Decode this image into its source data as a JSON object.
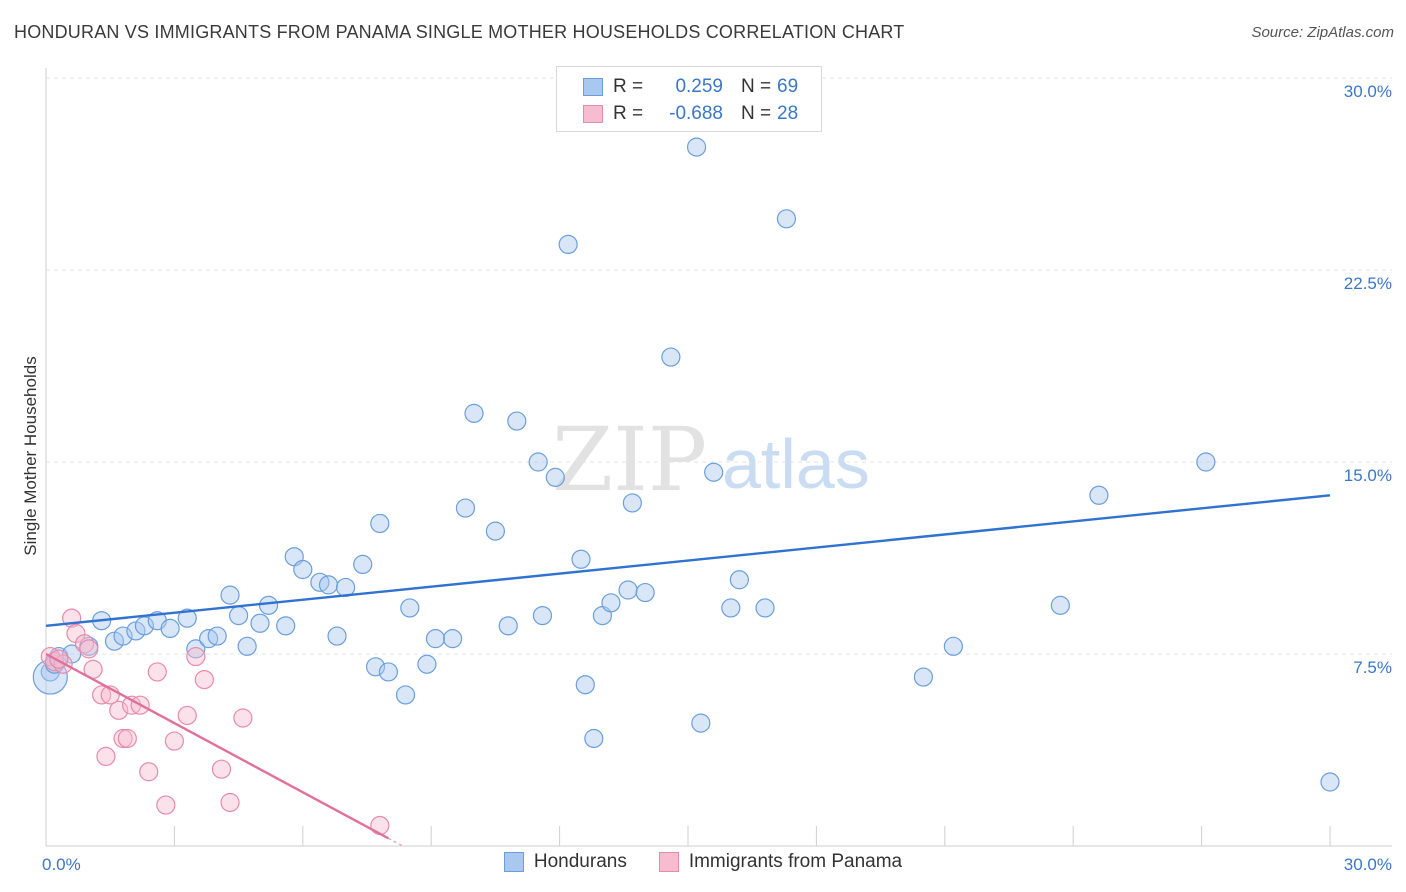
{
  "header": {
    "title": "HONDURAN VS IMMIGRANTS FROM PANAMA SINGLE MOTHER HOUSEHOLDS CORRELATION CHART",
    "source": "Source: ZipAtlas.com"
  },
  "watermark": {
    "zip": "ZIP",
    "atlas": "atlas"
  },
  "legend": {
    "rows": [
      {
        "r_label": "R =",
        "r_value": "0.259",
        "n_label": "N =",
        "n_value": "69",
        "color": "#a9c8ef",
        "border": "#6a9fdc"
      },
      {
        "r_label": "R =",
        "r_value": "-0.688",
        "n_label": "N =",
        "n_value": "28",
        "color": "#f6bcd0",
        "border": "#e88aab"
      }
    ]
  },
  "bottom_legend": {
    "items": [
      {
        "label": "Hondurans",
        "color": "#a9c8ef",
        "border": "#6a9fdc"
      },
      {
        "label": "Immigrants from Panama",
        "color": "#f6bcd0",
        "border": "#e88aab"
      }
    ]
  },
  "chart_data": {
    "type": "scatter",
    "title": "HONDURAN VS IMMIGRANTS FROM PANAMA SINGLE MOTHER HOUSEHOLDS CORRELATION CHART",
    "xlabel": "",
    "ylabel": "Single Mother Households",
    "xlim": [
      0,
      30
    ],
    "ylim": [
      0,
      30
    ],
    "x_tick_labels": [
      "0.0%",
      "30.0%"
    ],
    "y_tick_labels": [
      "7.5%",
      "15.0%",
      "22.5%",
      "30.0%"
    ],
    "y_ticks": [
      7.5,
      15.0,
      22.5,
      30.0
    ],
    "grid": true,
    "series": [
      {
        "name": "Hondurans",
        "color": "#6a9fdc",
        "fill": "#a9c8ef",
        "trend": {
          "x": [
            0,
            30
          ],
          "y": [
            8.6,
            13.7
          ]
        },
        "points": [
          [
            0.1,
            6.8
          ],
          [
            0.3,
            7.4
          ],
          [
            0.6,
            7.5
          ],
          [
            1.0,
            7.8
          ],
          [
            1.3,
            8.8
          ],
          [
            1.6,
            8.0
          ],
          [
            1.8,
            8.2
          ],
          [
            2.1,
            8.4
          ],
          [
            2.3,
            8.6
          ],
          [
            2.6,
            8.8
          ],
          [
            2.9,
            8.5
          ],
          [
            3.3,
            8.9
          ],
          [
            3.5,
            7.7
          ],
          [
            3.8,
            8.1
          ],
          [
            4.0,
            8.2
          ],
          [
            4.3,
            9.8
          ],
          [
            4.5,
            9.0
          ],
          [
            4.7,
            7.8
          ],
          [
            5.0,
            8.7
          ],
          [
            5.2,
            9.4
          ],
          [
            5.6,
            8.6
          ],
          [
            5.8,
            11.3
          ],
          [
            6.0,
            10.8
          ],
          [
            6.4,
            10.3
          ],
          [
            6.6,
            10.2
          ],
          [
            6.8,
            8.2
          ],
          [
            7.0,
            10.1
          ],
          [
            7.4,
            11.0
          ],
          [
            7.7,
            7.0
          ],
          [
            7.8,
            12.6
          ],
          [
            8.0,
            6.8
          ],
          [
            8.4,
            5.9
          ],
          [
            8.5,
            9.3
          ],
          [
            8.9,
            7.1
          ],
          [
            9.1,
            8.1
          ],
          [
            9.5,
            8.1
          ],
          [
            9.8,
            13.2
          ],
          [
            10.0,
            16.9
          ],
          [
            10.5,
            12.3
          ],
          [
            10.8,
            8.6
          ],
          [
            11.0,
            16.6
          ],
          [
            11.5,
            15.0
          ],
          [
            11.6,
            9.0
          ],
          [
            11.9,
            14.4
          ],
          [
            12.2,
            23.5
          ],
          [
            12.5,
            11.2
          ],
          [
            12.6,
            6.3
          ],
          [
            12.8,
            4.2
          ],
          [
            13.0,
            9.0
          ],
          [
            13.2,
            9.5
          ],
          [
            13.6,
            10.0
          ],
          [
            13.7,
            13.4
          ],
          [
            14.0,
            9.9
          ],
          [
            14.6,
            19.1
          ],
          [
            15.2,
            27.3
          ],
          [
            15.3,
            4.8
          ],
          [
            15.6,
            14.6
          ],
          [
            16.0,
            9.3
          ],
          [
            16.2,
            10.4
          ],
          [
            16.8,
            9.3
          ],
          [
            17.3,
            24.5
          ],
          [
            20.5,
            6.6
          ],
          [
            21.2,
            7.8
          ],
          [
            23.7,
            9.4
          ],
          [
            24.6,
            13.7
          ],
          [
            27.1,
            15.0
          ],
          [
            30.0,
            2.5
          ],
          [
            0.1,
            6.6
          ],
          [
            0.2,
            7.1
          ]
        ]
      },
      {
        "name": "Immigrants from Panama",
        "color": "#e88aab",
        "fill": "#f6bcd0",
        "trend": {
          "x": [
            0,
            8.0
          ],
          "y": [
            7.5,
            0.3
          ]
        },
        "points": [
          [
            0.1,
            7.4
          ],
          [
            0.2,
            7.2
          ],
          [
            0.4,
            7.1
          ],
          [
            0.6,
            8.9
          ],
          [
            0.7,
            8.3
          ],
          [
            0.9,
            7.9
          ],
          [
            1.0,
            7.7
          ],
          [
            1.1,
            6.9
          ],
          [
            1.3,
            5.9
          ],
          [
            1.4,
            3.5
          ],
          [
            1.5,
            5.9
          ],
          [
            1.7,
            5.3
          ],
          [
            1.8,
            4.2
          ],
          [
            1.9,
            4.2
          ],
          [
            2.0,
            5.5
          ],
          [
            2.2,
            5.5
          ],
          [
            2.4,
            2.9
          ],
          [
            2.6,
            6.8
          ],
          [
            2.8,
            1.6
          ],
          [
            3.0,
            4.1
          ],
          [
            3.3,
            5.1
          ],
          [
            3.5,
            7.4
          ],
          [
            3.7,
            6.5
          ],
          [
            4.1,
            3.0
          ],
          [
            4.3,
            1.7
          ],
          [
            4.6,
            5.0
          ],
          [
            7.8,
            0.8
          ],
          [
            0.3,
            7.3
          ]
        ]
      }
    ]
  }
}
